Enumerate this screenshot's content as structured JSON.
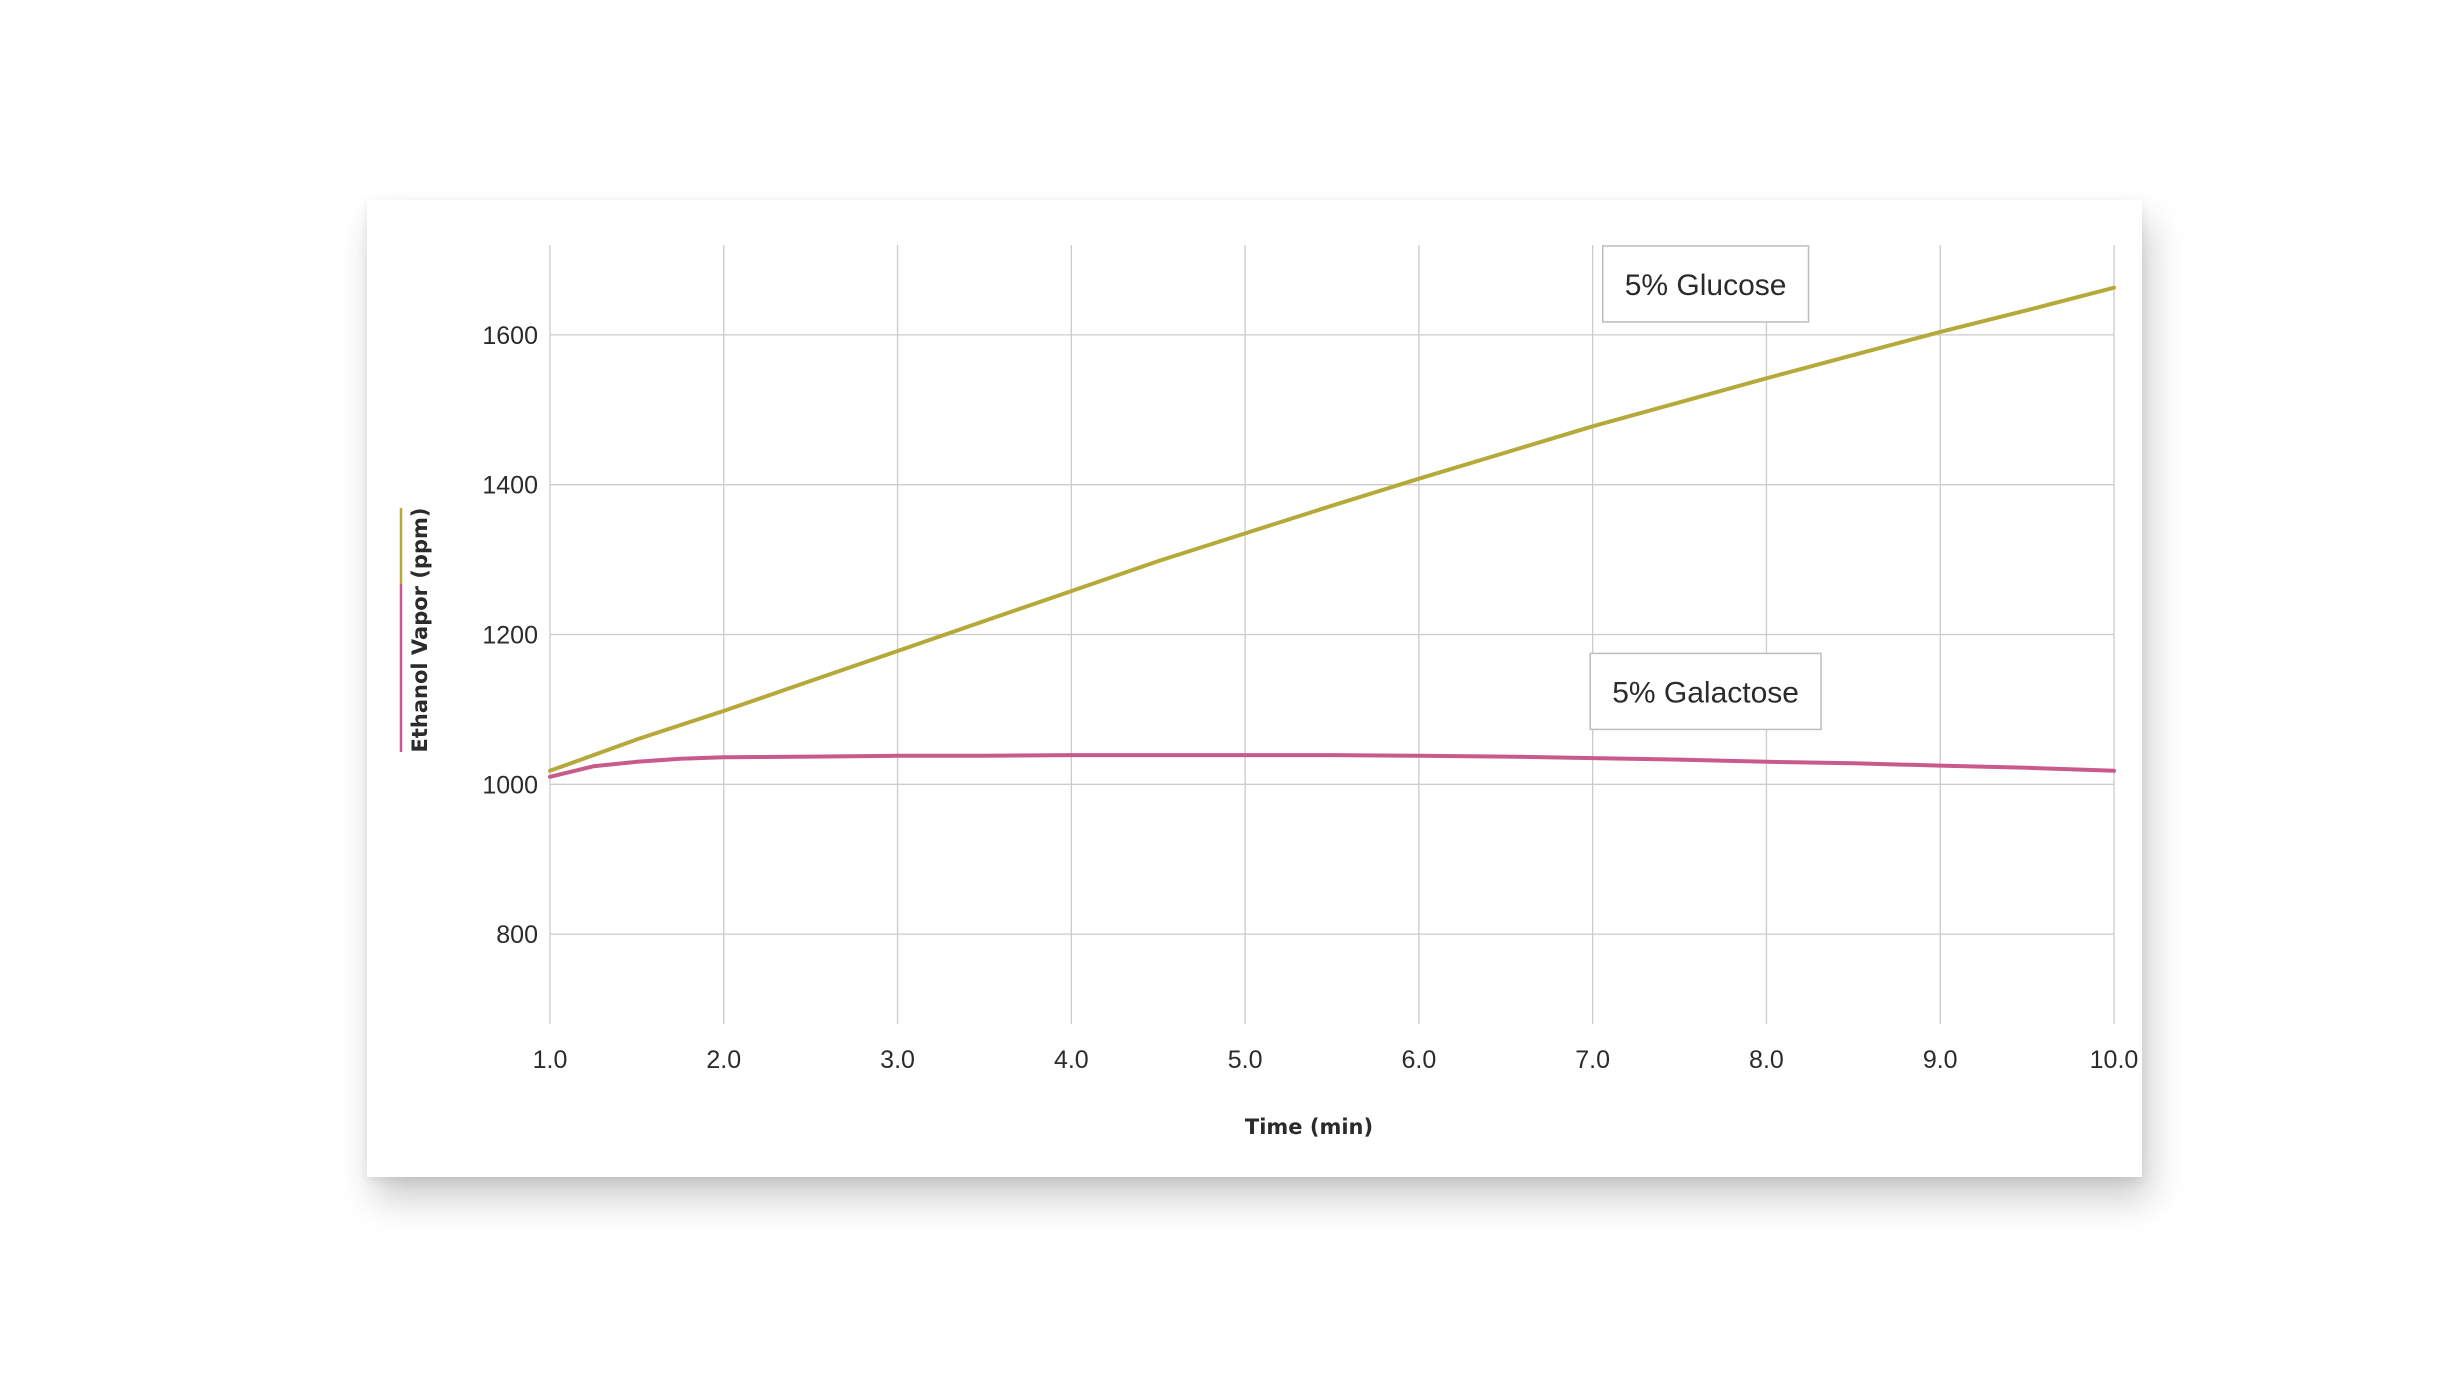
{
  "chart_data": {
    "type": "line",
    "xlabel": "Time (min)",
    "ylabel": "Ethanol Vapor (ppm)",
    "xlim": [
      1.0,
      10.0
    ],
    "ylim": [
      680,
      1720
    ],
    "x_ticks": [
      1.0,
      2.0,
      3.0,
      4.0,
      5.0,
      6.0,
      7.0,
      8.0,
      9.0,
      10.0
    ],
    "x_tick_labels": [
      "1.0",
      "2.0",
      "3.0",
      "4.0",
      "5.0",
      "6.0",
      "7.0",
      "8.0",
      "9.0",
      "10.0"
    ],
    "y_ticks": [
      800,
      1000,
      1200,
      1400,
      1600
    ],
    "y_tick_labels": [
      "800",
      "1000",
      "1200",
      "1400",
      "1600"
    ],
    "grid": true,
    "series": [
      {
        "name": "5% Glucose",
        "color": "#b5a93a",
        "x": [
          1.0,
          1.5,
          2.0,
          2.5,
          3.0,
          3.5,
          4.0,
          4.5,
          5.0,
          5.5,
          6.0,
          6.5,
          7.0,
          7.5,
          8.0,
          8.5,
          9.0,
          9.5,
          10.0
        ],
        "y": [
          1018,
          1060,
          1098,
          1138,
          1178,
          1218,
          1258,
          1298,
          1335,
          1372,
          1408,
          1443,
          1478,
          1510,
          1542,
          1573,
          1604,
          1633,
          1663
        ]
      },
      {
        "name": "5% Galactose",
        "color": "#c85a8c",
        "x": [
          1.0,
          1.25,
          1.5,
          1.75,
          2.0,
          2.5,
          3.0,
          3.5,
          4.0,
          4.5,
          5.0,
          5.5,
          6.0,
          6.5,
          7.0,
          7.5,
          8.0,
          8.5,
          9.0,
          9.5,
          10.0
        ],
        "y": [
          1010,
          1024,
          1030,
          1034,
          1036,
          1037,
          1038,
          1038,
          1039,
          1039,
          1039,
          1039,
          1038,
          1037,
          1035,
          1033,
          1030,
          1028,
          1025,
          1022,
          1018
        ]
      }
    ],
    "annotations": [
      {
        "text": "5% Glucose",
        "x": 7.65,
        "y": 1668
      },
      {
        "text": "5% Galactose",
        "x": 7.65,
        "y": 1124
      }
    ]
  }
}
